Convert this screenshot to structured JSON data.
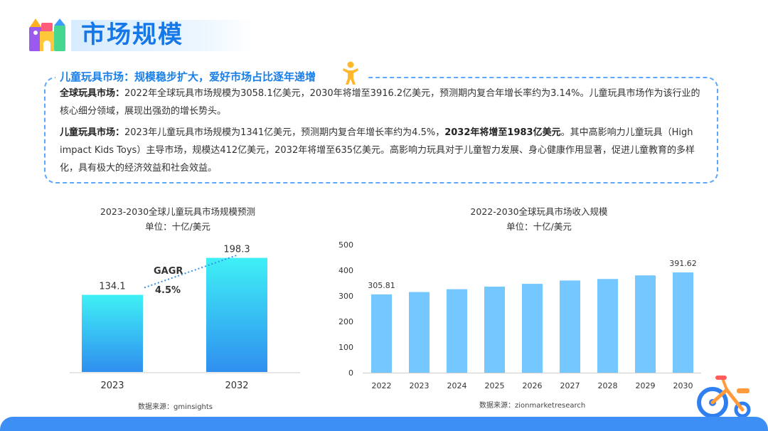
{
  "page": {
    "title": "市场规模",
    "box_title": "儿童玩具市场：规模稳步扩大，爱好市场占比逐年递增",
    "para1_label": "全球玩具市场：",
    "para1_text": "2022年全球玩具市场规模为3058.1亿美元，2030年将增至3916.2亿美元，预测期内复合年增长率约为3.14%。儿童玩具市场作为该行业的核心细分领域，展现出强劲的增长势头。",
    "para2_label": "儿童玩具市场：",
    "para2_text_a": "2023年儿童玩具市场规模为1341亿美元，预测期内复合年增长率约为4.5%，",
    "para2_bold": "2032年将增至1983亿美元",
    "para2_text_b": "。其中高影响力儿童玩具（High impact Kids Toys）主导市场，规模达412亿美元，2032年将增至635亿美元。高影响力玩具对于儿童智力发展、身心健康作用显著，促进儿童教育的多样化，具有极大的经济效益和社会效益。"
  },
  "chart_data": [
    {
      "type": "bar",
      "title": "2023-2030全球儿童玩具市场规模预测",
      "subtitle": "单位：十亿/美元",
      "categories": [
        "2023",
        "2032"
      ],
      "values": [
        134.1,
        198.3
      ],
      "value_labels": [
        "134.1",
        "198.3"
      ],
      "annotation": {
        "label": "GAGR",
        "value": "4.5%"
      },
      "ylim": [
        0,
        220
      ],
      "grid": false,
      "colors": {
        "top": "#3ff0f5",
        "bottom": "#2f8ff0"
      },
      "source": "数据来源：gminsights"
    },
    {
      "type": "bar",
      "title": "2022-2030全球玩具市场收入规模",
      "subtitle": "单位：十亿/美元",
      "categories": [
        "2022",
        "2023",
        "2024",
        "2025",
        "2026",
        "2027",
        "2028",
        "2029",
        "2030"
      ],
      "values": [
        305.81,
        315,
        326,
        336,
        347,
        360,
        366,
        380,
        391.62
      ],
      "value_labels": [
        "305.81",
        "",
        "",
        "",
        "",
        "",
        "",
        "",
        "391.62"
      ],
      "yticks": [
        0,
        100,
        200,
        300,
        400,
        500
      ],
      "ylim": [
        0,
        500
      ],
      "grid": false,
      "colors": {
        "bar": "#74c8ff"
      },
      "source": "数据来源：zionmarketresearch"
    }
  ]
}
